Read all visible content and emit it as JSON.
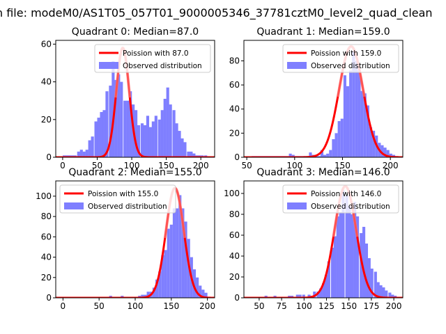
{
  "figure": {
    "suptitle": "n file: modeM0/AS1T05_057T01_9000005346_37781cztM0_level2_quad_clean"
  },
  "chart_data": [
    {
      "type": "bar",
      "title": "Quadrant 0: Median=87.0",
      "xlim": [
        -10,
        220
      ],
      "ylim": [
        0,
        62
      ],
      "xticks": [
        0,
        50,
        100,
        150,
        200
      ],
      "yticks": [
        0,
        20,
        40,
        60
      ],
      "legend_position": "upper right",
      "legend": [
        "Poission with 87.0",
        "Observed distribution"
      ],
      "poisson_mean": 87.0,
      "poisson_peak": 58,
      "bin_width": 4.2,
      "bins": [
        [
          0,
          1
        ],
        [
          4,
          1
        ],
        [
          8,
          1
        ],
        [
          12,
          1
        ],
        [
          16,
          1
        ],
        [
          21,
          3
        ],
        [
          25,
          4
        ],
        [
          29,
          3
        ],
        [
          33,
          4
        ],
        [
          37,
          9
        ],
        [
          41,
          11
        ],
        [
          46,
          19
        ],
        [
          50,
          21
        ],
        [
          54,
          24
        ],
        [
          58,
          25
        ],
        [
          62,
          35
        ],
        [
          67,
          38
        ],
        [
          71,
          51
        ],
        [
          75,
          41
        ],
        [
          79,
          44
        ],
        [
          83,
          40
        ],
        [
          88,
          30
        ],
        [
          92,
          30
        ],
        [
          96,
          35
        ],
        [
          100,
          28
        ],
        [
          104,
          25
        ],
        [
          108,
          17
        ],
        [
          113,
          18
        ],
        [
          117,
          17
        ],
        [
          121,
          22
        ],
        [
          125,
          16
        ],
        [
          129,
          19
        ],
        [
          133,
          22
        ],
        [
          138,
          20
        ],
        [
          142,
          25
        ],
        [
          146,
          31
        ],
        [
          150,
          37
        ],
        [
          154,
          28
        ],
        [
          159,
          25
        ],
        [
          163,
          18
        ],
        [
          167,
          14
        ],
        [
          171,
          10
        ],
        [
          175,
          8
        ],
        [
          180,
          3
        ],
        [
          184,
          3
        ],
        [
          188,
          2
        ],
        [
          192,
          1
        ],
        [
          196,
          1
        ],
        [
          200,
          1
        ],
        [
          205,
          1
        ]
      ],
      "series": [
        {
          "name": "Poission with 87.0",
          "color": "#ff0000",
          "kind": "line"
        },
        {
          "name": "Observed distribution",
          "color": "#7f7fff",
          "kind": "bar"
        }
      ]
    },
    {
      "type": "bar",
      "title": "Quadrant 1: Median=159.0",
      "xlim": [
        47,
        213
      ],
      "ylim": [
        0,
        97
      ],
      "xticks": [
        50,
        100,
        150,
        200
      ],
      "yticks": [
        0,
        20,
        40,
        60,
        80
      ],
      "legend_position": "upper right",
      "legend": [
        "Poission with 159.0",
        "Observed distribution"
      ],
      "poisson_mean": 159.0,
      "poisson_peak": 92,
      "bin_width": 3.0,
      "bins": [
        [
          55,
          1
        ],
        [
          58,
          1
        ],
        [
          61,
          1
        ],
        [
          64,
          1
        ],
        [
          67,
          1
        ],
        [
          70,
          1
        ],
        [
          73,
          1
        ],
        [
          76,
          1
        ],
        [
          79,
          1
        ],
        [
          82,
          1
        ],
        [
          85,
          1
        ],
        [
          88,
          1
        ],
        [
          91,
          1
        ],
        [
          94,
          3
        ],
        [
          97,
          2
        ],
        [
          100,
          1
        ],
        [
          103,
          1
        ],
        [
          106,
          1
        ],
        [
          109,
          1
        ],
        [
          112,
          1
        ],
        [
          115,
          4
        ],
        [
          118,
          2
        ],
        [
          121,
          2
        ],
        [
          124,
          1
        ],
        [
          127,
          6
        ],
        [
          130,
          2
        ],
        [
          133,
          3
        ],
        [
          136,
          6
        ],
        [
          139,
          15
        ],
        [
          142,
          20
        ],
        [
          145,
          30
        ],
        [
          148,
          32
        ],
        [
          151,
          68
        ],
        [
          154,
          59
        ],
        [
          157,
          72
        ],
        [
          160,
          88
        ],
        [
          163,
          80
        ],
        [
          166,
          72
        ],
        [
          169,
          55
        ],
        [
          172,
          53
        ],
        [
          175,
          43
        ],
        [
          178,
          25
        ],
        [
          181,
          22
        ],
        [
          184,
          18
        ],
        [
          187,
          12
        ],
        [
          190,
          10
        ],
        [
          193,
          8
        ],
        [
          196,
          6
        ],
        [
          199,
          3
        ],
        [
          202,
          2
        ],
        [
          205,
          1
        ]
      ],
      "series": [
        {
          "name": "Poission with 159.0",
          "color": "#ff0000",
          "kind": "line"
        },
        {
          "name": "Observed distribution",
          "color": "#7f7fff",
          "kind": "bar"
        }
      ]
    },
    {
      "type": "bar",
      "title": "Quadrant 2: Median=155.0",
      "xlim": [
        -10,
        210
      ],
      "ylim": [
        0,
        115
      ],
      "xticks": [
        0,
        50,
        100,
        150,
        200
      ],
      "yticks": [
        0,
        20,
        40,
        60,
        80,
        100
      ],
      "legend_position": "upper left",
      "legend": [
        "Poission with 155.0",
        "Observed distribution"
      ],
      "poisson_mean": 155.0,
      "poisson_peak": 108,
      "bin_width": 4.0,
      "bins": [
        [
          0,
          1
        ],
        [
          4,
          1
        ],
        [
          8,
          1
        ],
        [
          12,
          1
        ],
        [
          16,
          1
        ],
        [
          20,
          1
        ],
        [
          24,
          1
        ],
        [
          28,
          1
        ],
        [
          32,
          1
        ],
        [
          36,
          1
        ],
        [
          40,
          1
        ],
        [
          44,
          1
        ],
        [
          48,
          1
        ],
        [
          52,
          1
        ],
        [
          56,
          1
        ],
        [
          60,
          1
        ],
        [
          64,
          2
        ],
        [
          68,
          1
        ],
        [
          72,
          1
        ],
        [
          76,
          1
        ],
        [
          80,
          2
        ],
        [
          84,
          1
        ],
        [
          88,
          1
        ],
        [
          92,
          1
        ],
        [
          96,
          1
        ],
        [
          100,
          1
        ],
        [
          104,
          2
        ],
        [
          108,
          3
        ],
        [
          112,
          3
        ],
        [
          116,
          6
        ],
        [
          120,
          6
        ],
        [
          124,
          10
        ],
        [
          128,
          18
        ],
        [
          132,
          26
        ],
        [
          136,
          42
        ],
        [
          140,
          47
        ],
        [
          144,
          68
        ],
        [
          148,
          72
        ],
        [
          152,
          88
        ],
        [
          156,
          88
        ],
        [
          160,
          101
        ],
        [
          164,
          88
        ],
        [
          168,
          75
        ],
        [
          172,
          58
        ],
        [
          176,
          40
        ],
        [
          180,
          28
        ],
        [
          184,
          20
        ],
        [
          188,
          12
        ],
        [
          192,
          8
        ],
        [
          196,
          5
        ]
      ],
      "series": [
        {
          "name": "Poission with 155.0",
          "color": "#ff0000",
          "kind": "line"
        },
        {
          "name": "Observed distribution",
          "color": "#7f7fff",
          "kind": "bar"
        }
      ]
    },
    {
      "type": "bar",
      "title": "Quadrant 3: Median=146.0",
      "xlim": [
        33,
        210
      ],
      "ylim": [
        0,
        112
      ],
      "xticks": [
        50,
        75,
        100,
        125,
        150,
        175,
        200
      ],
      "yticks": [
        0,
        20,
        40,
        60,
        80,
        100
      ],
      "legend_position": "upper right",
      "legend": [
        "Poission with 146.0",
        "Observed distribution"
      ],
      "poisson_mean": 146.0,
      "poisson_peak": 107,
      "bin_width": 3.2,
      "bins": [
        [
          40,
          1
        ],
        [
          43,
          1
        ],
        [
          46,
          1
        ],
        [
          50,
          1
        ],
        [
          53,
          1
        ],
        [
          56,
          2
        ],
        [
          59,
          1
        ],
        [
          62,
          1
        ],
        [
          66,
          2
        ],
        [
          69,
          1
        ],
        [
          72,
          1
        ],
        [
          75,
          1
        ],
        [
          78,
          1
        ],
        [
          82,
          2
        ],
        [
          85,
          2
        ],
        [
          88,
          1
        ],
        [
          91,
          3
        ],
        [
          94,
          3
        ],
        [
          98,
          3
        ],
        [
          101,
          1
        ],
        [
          104,
          3
        ],
        [
          107,
          2
        ],
        [
          110,
          6
        ],
        [
          114,
          6
        ],
        [
          117,
          9
        ],
        [
          120,
          14
        ],
        [
          123,
          22
        ],
        [
          126,
          35
        ],
        [
          130,
          48
        ],
        [
          133,
          59
        ],
        [
          136,
          78
        ],
        [
          139,
          82
        ],
        [
          142,
          103
        ],
        [
          146,
          98
        ],
        [
          149,
          88
        ],
        [
          152,
          80
        ],
        [
          155,
          92
        ],
        [
          158,
          78
        ],
        [
          162,
          62
        ],
        [
          165,
          68
        ],
        [
          168,
          52
        ],
        [
          171,
          38
        ],
        [
          174,
          28
        ],
        [
          178,
          25
        ],
        [
          181,
          15
        ],
        [
          184,
          12
        ],
        [
          187,
          10
        ],
        [
          190,
          7
        ],
        [
          194,
          5
        ],
        [
          197,
          3
        ],
        [
          200,
          2
        ]
      ],
      "series": [
        {
          "name": "Poission with 146.0",
          "color": "#ff0000",
          "kind": "line"
        },
        {
          "name": "Observed distribution",
          "color": "#7f7fff",
          "kind": "bar"
        }
      ]
    }
  ]
}
